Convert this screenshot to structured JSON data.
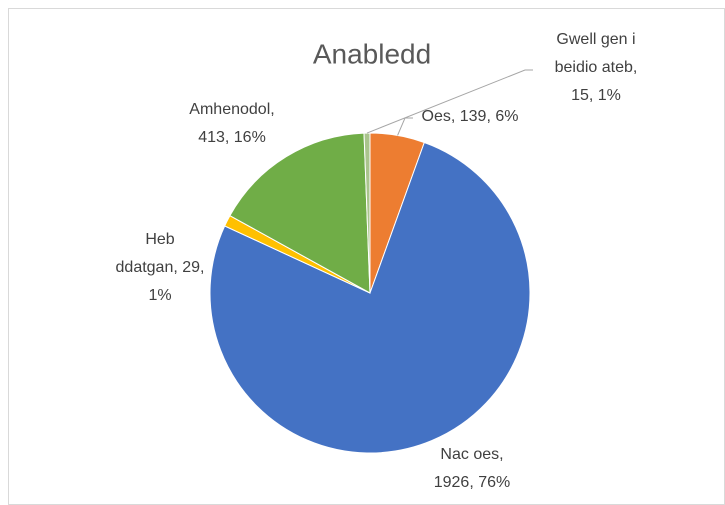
{
  "chart_data": {
    "type": "pie",
    "title": "Anabledd",
    "categories": [
      "Oes",
      "Nac oes",
      "Heb ddatgan",
      "Amhenodol",
      "Gwell gen i beidio ateb"
    ],
    "values": [
      139,
      1926,
      29,
      413,
      15
    ],
    "value_labels": [
      "Oes, 139, 6%",
      "Nac oes, 1926, 76%",
      "Heb ddatgan, 29, 1%",
      "Amhenodol, 413, 16%",
      "Gwell gen i beidio ateb, 15, 1%"
    ],
    "colors": [
      "#ED7D31",
      "#4472C4",
      "#FFC000",
      "#70AD47",
      "#A9C48C"
    ]
  }
}
